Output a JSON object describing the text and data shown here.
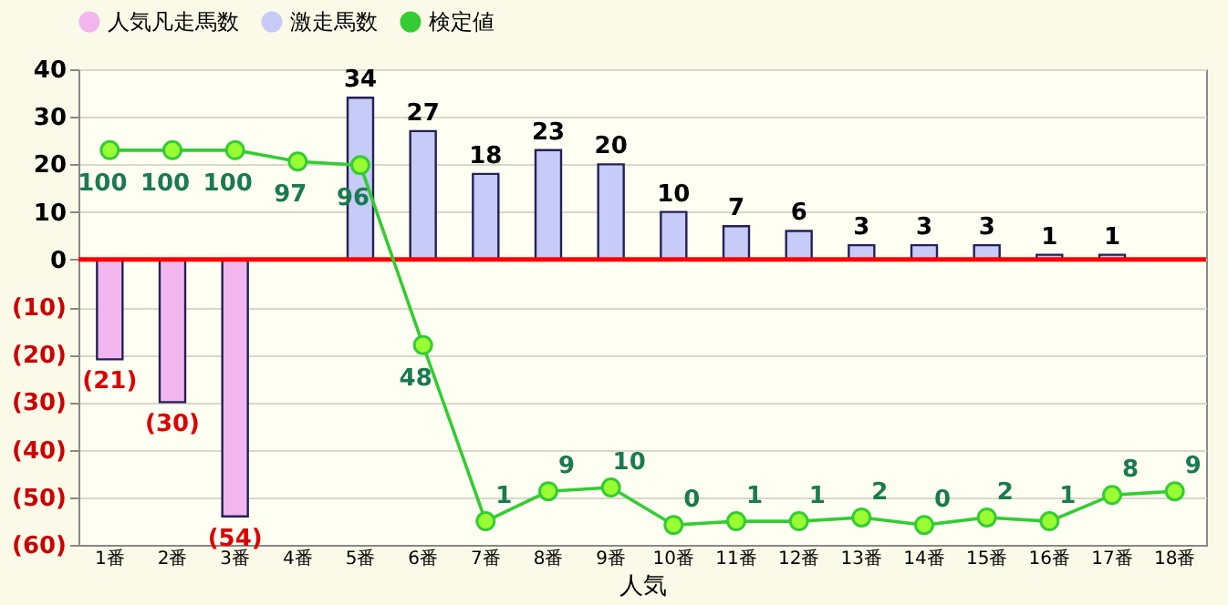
{
  "chart_data": {
    "type": "bar",
    "xlabel": "人気",
    "categories": [
      "1番",
      "2番",
      "3番",
      "4番",
      "5番",
      "6番",
      "7番",
      "8番",
      "9番",
      "10番",
      "11番",
      "12番",
      "13番",
      "14番",
      "15番",
      "16番",
      "17番",
      "18番"
    ],
    "series": [
      {
        "name": "人気凡走馬数",
        "color": "#f2b6ee",
        "values": [
          -21,
          -30,
          -54,
          null,
          null,
          null,
          null,
          null,
          null,
          null,
          null,
          null,
          null,
          null,
          null,
          null,
          null,
          null
        ],
        "value_labels": [
          "(21)",
          "(30)",
          "(54)",
          null,
          null,
          null,
          null,
          null,
          null,
          null,
          null,
          null,
          null,
          null,
          null,
          null,
          null,
          null
        ]
      },
      {
        "name": "激走馬数",
        "color": "#c6cbf7",
        "values": [
          null,
          null,
          null,
          null,
          34,
          27,
          18,
          23,
          20,
          10,
          7,
          6,
          3,
          3,
          3,
          1,
          1,
          null
        ],
        "value_labels": [
          null,
          null,
          null,
          null,
          "34",
          "27",
          "18",
          "23",
          "20",
          "10",
          "7",
          "6",
          "3",
          "3",
          "3",
          "1",
          "1",
          null
        ]
      },
      {
        "name": "検定値",
        "type": "line",
        "axis": "y2",
        "color": "#33cc33",
        "values": [
          100,
          100,
          100,
          97,
          96,
          48,
          1,
          9,
          10,
          0,
          1,
          1,
          2,
          0,
          2,
          1,
          8,
          9
        ],
        "value_labels": [
          "100",
          "100",
          "100",
          "97",
          "96",
          "48",
          "1",
          "9",
          "10",
          "0",
          "1",
          "1",
          "2",
          "0",
          "2",
          "1",
          "8",
          "9"
        ]
      }
    ],
    "ylim": [
      -60,
      40
    ],
    "yticks": [
      40,
      30,
      20,
      10,
      0,
      {
        "value": -10,
        "label": "(10)"
      },
      {
        "value": -20,
        "label": "(20)"
      },
      {
        "value": -30,
        "label": "(30)"
      },
      {
        "value": -40,
        "label": "(40)"
      },
      {
        "value": -50,
        "label": "(50)"
      },
      {
        "value": -60,
        "label": "(60)"
      }
    ],
    "y2lim": [
      -5.3,
      121.6
    ],
    "ref_lines": [
      {
        "axis": "y",
        "value": 0,
        "color": "#ff0000"
      }
    ],
    "grid": "y",
    "legend": "top",
    "marker": "circle",
    "line_style": "solid"
  }
}
